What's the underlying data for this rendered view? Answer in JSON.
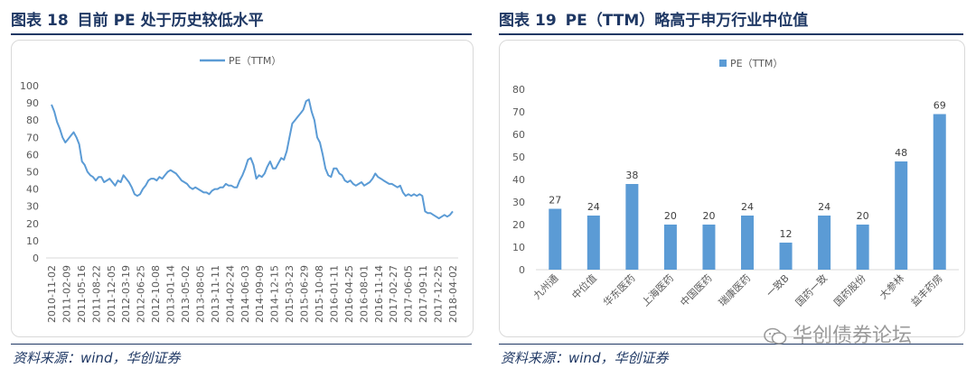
{
  "left": {
    "fig_label": "图表",
    "fig_num": "18",
    "fig_title": "目前 PE 处于历史较低水平",
    "source": "资料来源：wind，华创证券"
  },
  "right": {
    "fig_label": "图表",
    "fig_num": "19",
    "fig_title": "PE（TTM）略高于申万行业中位值",
    "source": "资料来源：wind，华创证券",
    "watermark": "华创债券论坛"
  },
  "colors": {
    "series": "#5b9bd5",
    "axis": "#d9d9d9",
    "title": "#1f3864"
  },
  "chart_data": [
    {
      "type": "line",
      "title": "目前 PE 处于历史较低水平",
      "legend": "PE（TTM）",
      "legend_position": "top-center",
      "ylim": [
        0,
        100
      ],
      "yticks": [
        "0",
        "10",
        "20",
        "30",
        "40",
        "50",
        "60",
        "70",
        "80",
        "90",
        "100"
      ],
      "grid": false,
      "xtick_labels": [
        "2010-11-02",
        "2011-02-09",
        "2011-05-16",
        "2011-08-22",
        "2011-12-05",
        "2012-03-19",
        "2012-06-25",
        "2012-10-08",
        "2013-01-14",
        "2013-05-02",
        "2013-08-05",
        "2013-11-11",
        "2014-02-24",
        "2014-06-03",
        "2014-09-09",
        "2014-12-15",
        "2015-03-23",
        "2015-06-29",
        "2015-10-08",
        "2016-01-11",
        "2016-04-25",
        "2016-08-01",
        "2016-11-14",
        "2017-02-27",
        "2017-06-05",
        "2017-09-11",
        "2017-12-25",
        "2018-04-02"
      ],
      "values": [
        89,
        85,
        79,
        75,
        70,
        67,
        69,
        71,
        73,
        70,
        66,
        56,
        54,
        50,
        48,
        47,
        45,
        47,
        47,
        44,
        45,
        46,
        44,
        42,
        45,
        44,
        48,
        46,
        44,
        41,
        37,
        36,
        37,
        40,
        42,
        45,
        46,
        46,
        45,
        47,
        46,
        48,
        50,
        51,
        50,
        49,
        47,
        45,
        44,
        43,
        41,
        40,
        41,
        40,
        39,
        38,
        38,
        37,
        39,
        40,
        40,
        41,
        41,
        43,
        42,
        42,
        41,
        41,
        45,
        48,
        52,
        57,
        58,
        54,
        46,
        48,
        47,
        49,
        53,
        56,
        52,
        52,
        55,
        58,
        57,
        62,
        70,
        78,
        80,
        82,
        84,
        86,
        91,
        92,
        85,
        80,
        70,
        67,
        60,
        52,
        48,
        47,
        52,
        52,
        49,
        48,
        45,
        44,
        45,
        43,
        42,
        43,
        44,
        42,
        43,
        44,
        46,
        49,
        47,
        46,
        45,
        44,
        43,
        43,
        42,
        41,
        42,
        38,
        36,
        37,
        36,
        37,
        36,
        37,
        36,
        27,
        26,
        26,
        25,
        24,
        23,
        24,
        25,
        24,
        25,
        27
      ],
      "series": [
        {
          "name": "PE（TTM）"
        }
      ]
    },
    {
      "type": "bar",
      "title": "PE（TTM）略高于申万行业中位值",
      "legend": "PE（TTM）",
      "legend_position": "top-center",
      "ylim": [
        0,
        80
      ],
      "yticks": [
        "0",
        "10",
        "20",
        "30",
        "40",
        "50",
        "60",
        "70",
        "80"
      ],
      "grid": false,
      "categories": [
        "九州通",
        "中位值",
        "华东医药",
        "上海医药",
        "中国医药",
        "瑞康医药",
        "一致B",
        "国药一致",
        "国药股份",
        "大参林",
        "益丰药房"
      ],
      "values": [
        27,
        24,
        38,
        20,
        20,
        24,
        12,
        24,
        20,
        48,
        69
      ],
      "series": [
        {
          "name": "PE（TTM）",
          "values": [
            27,
            24,
            38,
            20,
            20,
            24,
            12,
            24,
            20,
            48,
            69
          ]
        }
      ]
    }
  ]
}
